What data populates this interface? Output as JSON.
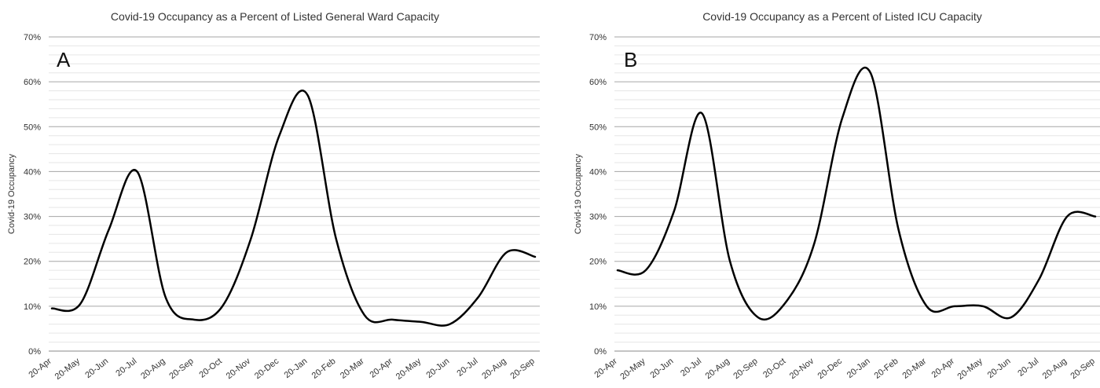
{
  "chart_data": [
    {
      "type": "line",
      "panel_label": "A",
      "title": "Covid-19 Occupancy as a Percent of Listed General Ward Capacity",
      "ylabel": "Covid-19 Occupancy",
      "xlabel": "",
      "ylim": [
        0,
        70
      ],
      "y_ticks": [
        "0%",
        "10%",
        "20%",
        "30%",
        "40%",
        "50%",
        "60%",
        "70%"
      ],
      "x_tick_labels": [
        "20-Apr",
        "20-May",
        "20-Jun",
        "20-Jul",
        "20-Aug",
        "20-Sep",
        "20-Oct",
        "20-Nov",
        "20-Dec",
        "20-Jan",
        "20-Feb",
        "20-Mar",
        "20-Apr",
        "20-May",
        "20-Jun",
        "20-Jul",
        "20-Aug",
        "20-Sep"
      ],
      "grid": true,
      "series": [
        {
          "color": "#000000",
          "x": [
            "20-Apr",
            "20-May",
            "20-Jun",
            "20-Jul",
            "20-Aug",
            "20-Sep",
            "20-Oct",
            "20-Nov",
            "20-Dec",
            "20-Jan",
            "20-Feb",
            "20-Mar",
            "20-Apr",
            "20-May",
            "20-Jun",
            "20-Jul",
            "20-Aug",
            "20-Sep"
          ],
          "values": [
            9.5,
            10.5,
            27,
            40,
            12,
            7,
            10,
            25,
            48,
            57,
            25,
            8,
            7,
            6.5,
            6,
            12,
            22,
            21
          ]
        }
      ]
    },
    {
      "type": "line",
      "panel_label": "B",
      "title": "Covid-19 Occupancy as a Percent of Listed ICU Capacity",
      "ylabel": "Covid-19 Occupancy",
      "xlabel": "",
      "ylim": [
        0,
        70
      ],
      "y_ticks": [
        "0%",
        "10%",
        "20%",
        "30%",
        "40%",
        "50%",
        "60%",
        "70%"
      ],
      "x_tick_labels": [
        "20-Apr",
        "20-May",
        "20-Jun",
        "20-Jul",
        "20-Aug",
        "20-Sep",
        "20-Oct",
        "20-Nov",
        "20-Dec",
        "20-Jan",
        "20-Feb",
        "20-Mar",
        "20-Apr",
        "20-May",
        "20-Jun",
        "20-Jul",
        "20-Aug",
        "20-Sep"
      ],
      "grid": true,
      "series": [
        {
          "color": "#000000",
          "x": [
            "20-Apr",
            "20-May",
            "20-Jun",
            "20-Jul",
            "20-Aug",
            "20-Sep",
            "20-Oct",
            "20-Nov",
            "20-Dec",
            "20-Jan",
            "20-Feb",
            "20-Mar",
            "20-Apr",
            "20-May",
            "20-Jun",
            "20-Jul",
            "20-Aug",
            "20-Sep"
          ],
          "values": [
            18,
            18,
            31,
            53,
            20,
            7.5,
            11,
            24,
            52,
            62,
            27,
            10,
            10,
            10,
            7.5,
            16,
            30,
            30
          ]
        }
      ]
    }
  ]
}
